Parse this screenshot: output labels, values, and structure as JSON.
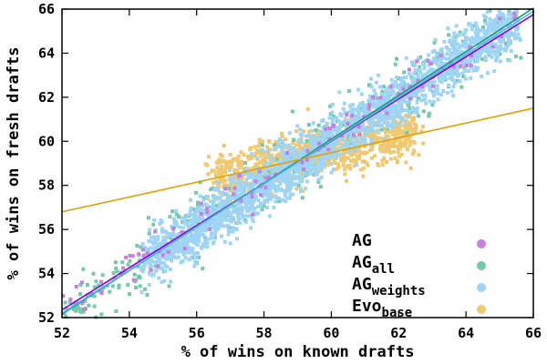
{
  "chart_data": {
    "type": "scatter",
    "xlabel": "% of wins on known drafts",
    "ylabel": "% of wins on fresh drafts",
    "xlim": [
      52,
      66
    ],
    "ylim": [
      52,
      66
    ],
    "x_ticks": [
      "52",
      "54",
      "56",
      "58",
      "60",
      "62",
      "64",
      "66"
    ],
    "y_ticks": [
      "52",
      "54",
      "56",
      "58",
      "60",
      "62",
      "64",
      "66"
    ],
    "grid": false,
    "legend_position": "bottom-right",
    "series": [
      {
        "name": "AG",
        "name_main": "AG",
        "name_sub": "",
        "color": "#c77fe0",
        "line_color": "#9400d3",
        "cloud": {
          "x_range": [
            52.0,
            65.8
          ],
          "center_slope": 0.974,
          "center_intercept": 1.7,
          "spread": 0.55,
          "count": 110
        },
        "trend": {
          "x": [
            52,
            66
          ],
          "y": [
            52.35,
            65.75
          ]
        }
      },
      {
        "name": "AGall",
        "name_main": "AG",
        "name_sub": "all",
        "color": "#74c9ad",
        "line_color": "#1a9a7a",
        "cloud": {
          "x_range": [
            52.0,
            65.8
          ],
          "center_slope": 1.0,
          "center_intercept": 0.0,
          "spread": 0.75,
          "count": 420
        },
        "trend": {
          "x": [
            52,
            66
          ],
          "y": [
            52.15,
            66.05
          ]
        }
      },
      {
        "name": "AGweights",
        "name_main": "AG",
        "name_sub": "weights",
        "color": "#9fd4f5",
        "line_color": "#56b4e9",
        "cloud": {
          "x_range": [
            54.5,
            65.5
          ],
          "center_slope": 1.0,
          "center_intercept": 0.0,
          "spread": 0.6,
          "count": 2200
        },
        "trend": {
          "x": [
            52,
            66
          ],
          "y": [
            52.2,
            65.9
          ]
        }
      },
      {
        "name": "Evobase",
        "name_main": "Evo",
        "name_sub": "base",
        "color": "#f0c870",
        "line_color": "#e69f00",
        "cloud": {
          "x_range": [
            56.5,
            62.5
          ],
          "center_slope": 0.34,
          "center_intercept": 39.2,
          "spread": 0.55,
          "count": 900
        },
        "trend": {
          "x": [
            52,
            66
          ],
          "y": [
            56.8,
            61.5
          ]
        }
      }
    ]
  }
}
